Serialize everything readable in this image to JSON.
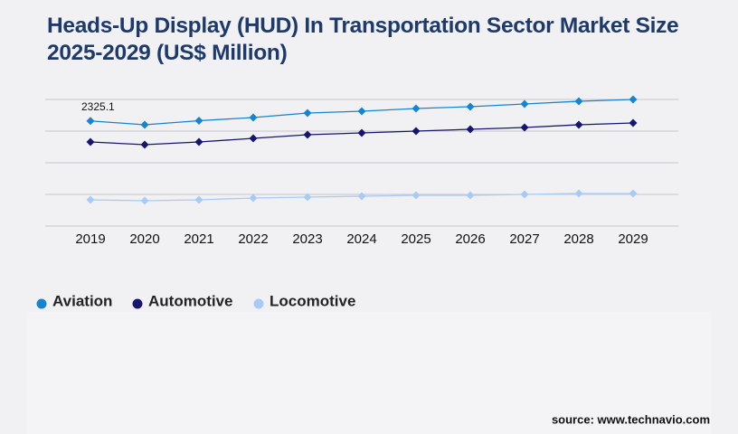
{
  "chart_data": {
    "type": "line",
    "title": "Heads-Up Display (HUD) In Transportation Sector Market Size 2025-2029 (US$ Million)",
    "source": "source: www.technavio.com",
    "categories": [
      "2019",
      "2020",
      "2021",
      "2022",
      "2023",
      "2024",
      "2025",
      "2026",
      "2027",
      "2028",
      "2029"
    ],
    "series": [
      {
        "name": "Aviation",
        "color": "#1685d0",
        "values": [
          2325.1,
          2240,
          2330,
          2400,
          2500,
          2540,
          2600,
          2640,
          2700,
          2760,
          2800
        ]
      },
      {
        "name": "Automotive",
        "color": "#16166e",
        "values": [
          1860,
          1800,
          1860,
          1940,
          2020,
          2060,
          2100,
          2140,
          2180,
          2240,
          2280
        ]
      },
      {
        "name": "Locomotive",
        "color": "#a8cbf5",
        "values": [
          580,
          560,
          580,
          620,
          640,
          660,
          680,
          680,
          700,
          720,
          720
        ]
      }
    ],
    "ylim": [
      0,
      2800
    ],
    "yticks": [
      0,
      700,
      1400,
      2100,
      2800
    ],
    "grid": true,
    "legend": "bottom-left"
  }
}
